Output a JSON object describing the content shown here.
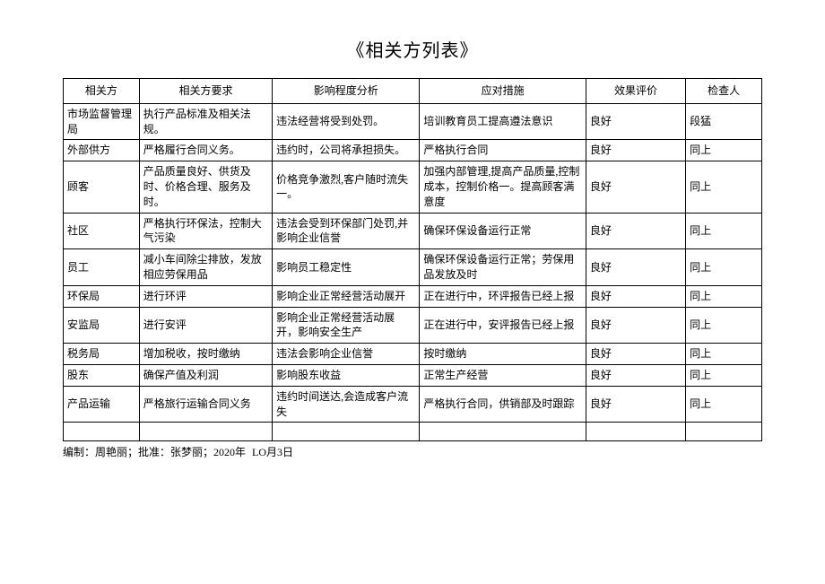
{
  "title": "《相关方列表》",
  "columns": [
    "相关方",
    "相关方要求",
    "影响程度分析",
    "应对措施",
    "效果评价",
    "检查人"
  ],
  "rows": [
    [
      "市场监督管理局",
      "执行产品标准及相关法规。",
      "违法经营将受到处罚。",
      "培训教育员工提高遵法意识",
      "良好",
      "段猛"
    ],
    [
      "外部供方",
      "严格履行合同义务。",
      "违约时，公司将承担损失。",
      "严格执行合同",
      "良好",
      "同上"
    ],
    [
      "顾客",
      "产品质量良好、供货及时、价格合理、服务及时。",
      "价格竞争激烈,客户随时流失一。",
      "加强内部管理,提高产品质量,控制成本，控制价格一。提高顾客满意度",
      "良好",
      "同上"
    ],
    [
      "社区",
      "严格执行环保法，控制大气污染",
      "违法会受到环保部门处罚,并影响企业信誉",
      "确保环保设备运行正常",
      "良好",
      "同上"
    ],
    [
      "员工",
      "减小车间除尘排放，发放相应劳保用品",
      "影响员工稳定性",
      "确保环保设备运行正常；劳保用品发放及时",
      "良好",
      "同上"
    ],
    [
      "环保局",
      "进行环评",
      "影响企业正常经营活动展开",
      "正在进行中，环评报告已经上报",
      "良好",
      "同上"
    ],
    [
      "安监局",
      "进行安评",
      "影响企业正常经营活动展开，影响安全生产",
      "正在进行中，安评报告已经上报",
      "良好",
      "同上"
    ],
    [
      "税务局",
      "增加税收，按时缴纳",
      "违法会影响企业信誉",
      "按时缴纳",
      "良好",
      "同上"
    ],
    [
      "股东",
      "确保产值及利润",
      "影响股东收益",
      "正常生产经营",
      "良好",
      "同上"
    ],
    [
      "产品运输",
      "严格旅行运输合同义务",
      "违约时间送达,会造成客户流失",
      "严格执行合同，供销部及时跟踪",
      "良好",
      "同上"
    ]
  ],
  "footer_part1": "编制：周艳丽；批准：张梦丽；2020年",
  "footer_part2": "LO月3日"
}
